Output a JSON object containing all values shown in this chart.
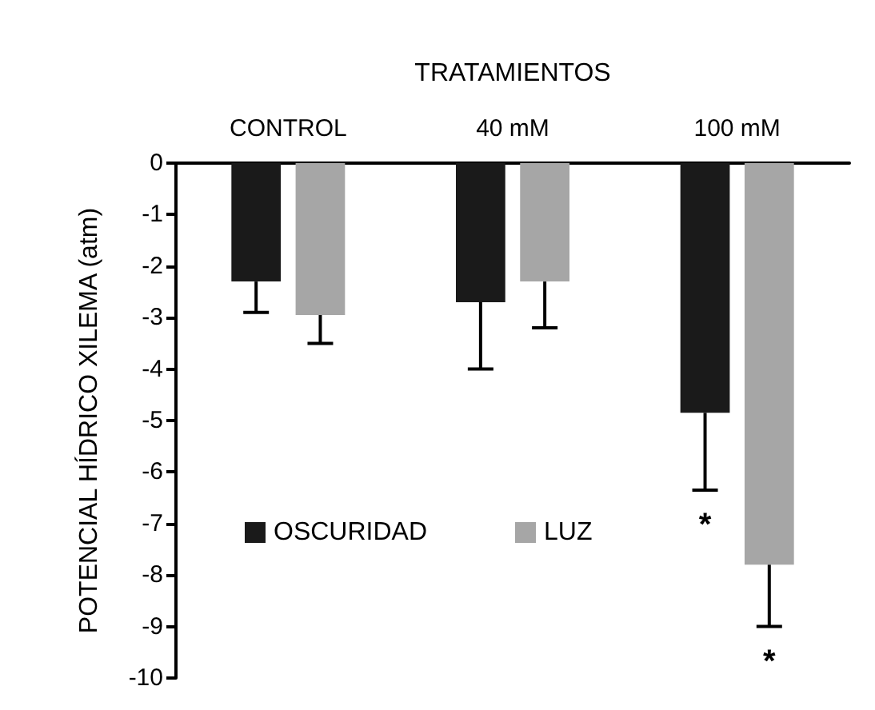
{
  "chart_data": {
    "type": "bar",
    "xlabel": "TRATAMIENTOS",
    "ylabel": "POTENCIAL HÍDRICO XILEMA (atm)",
    "categories": [
      "CONTROL",
      "40 mM",
      "100 mM"
    ],
    "series": [
      {
        "name": "OSCURIDAD",
        "color": "#1a1a1a",
        "values": [
          -2.3,
          -2.7,
          -4.85
        ],
        "errors": [
          [
            -2.9,
            -2.3
          ],
          [
            -4.0,
            -2.7
          ],
          [
            -6.35,
            -4.85
          ]
        ]
      },
      {
        "name": "LUZ",
        "color": "#a6a6a6",
        "values": [
          -2.95,
          -2.3,
          -7.8
        ],
        "errors": [
          [
            -3.5,
            -2.95
          ],
          [
            -3.2,
            -2.3
          ],
          [
            -9.0,
            -7.8
          ]
        ]
      }
    ],
    "annotations": [
      "*",
      "*"
    ],
    "ylim": [
      -10,
      0
    ],
    "yticks": [
      0,
      -1,
      -2,
      -3,
      -4,
      -5,
      -6,
      -7,
      -8,
      -9,
      -10
    ],
    "grid": false,
    "legend": "bottom left"
  }
}
